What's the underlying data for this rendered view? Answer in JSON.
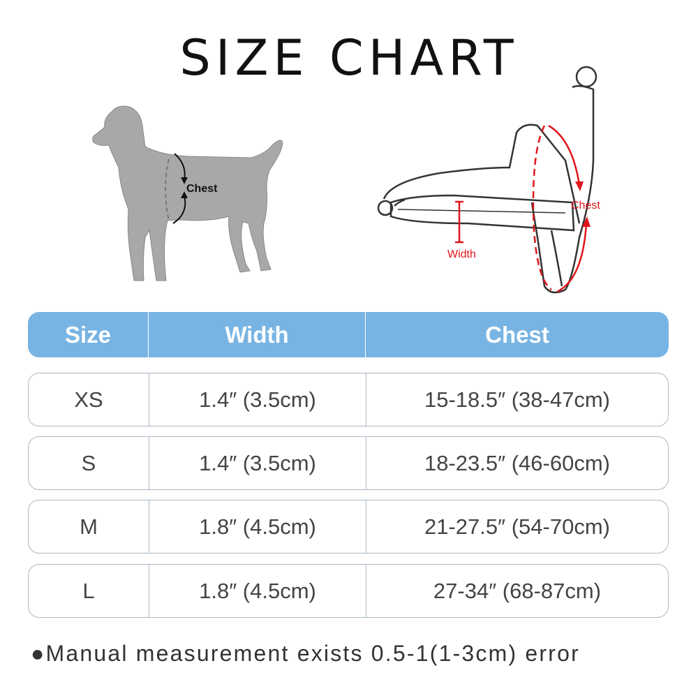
{
  "title": "SIZE CHART",
  "dog_label": "Chest",
  "harness_labels": {
    "chest": "Chest",
    "width": "Width"
  },
  "colors": {
    "header": "#78b4e3",
    "measure": "#e0161b",
    "dog": "#a8a8a8"
  },
  "table": {
    "headers": [
      "Size",
      "Width",
      "Chest"
    ],
    "rows": [
      [
        "XS",
        "1.4″ (3.5cm)",
        "15-18.5″ (38-47cm)"
      ],
      [
        "S",
        "1.4″ (3.5cm)",
        "18-23.5″ (46-60cm)"
      ],
      [
        "M",
        "1.8″ (4.5cm)",
        "21-27.5″ (54-70cm)"
      ],
      [
        "L",
        "1.8″ (4.5cm)",
        "27-34″ (68-87cm)"
      ]
    ]
  },
  "note": "●Manual measurement exists 0.5-1(1-3cm) error"
}
